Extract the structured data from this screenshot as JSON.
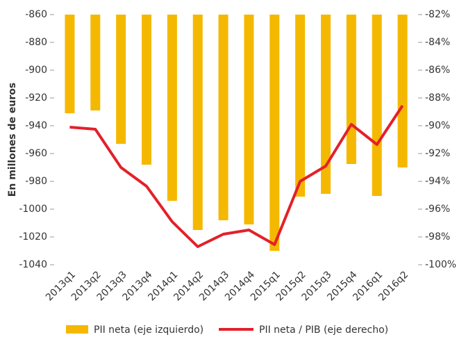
{
  "chart_data": {
    "type": "bar_line",
    "y_label": "En millones de euros",
    "categories": [
      "2013q1",
      "2013q2",
      "2013q3",
      "2013q4",
      "2014q1",
      "2014q2",
      "2014q3",
      "2014q4",
      "2015q1",
      "2015q2",
      "2015q3",
      "2015q4",
      "2016q1",
      "2016q2"
    ],
    "series": [
      {
        "name": "PII neta (eje izquierdo)",
        "type": "bar",
        "color": "#f5b800",
        "axis": "y",
        "values": [
          -931,
          -929,
          -953,
          -968,
          -994,
          -1015,
          -1008,
          -1011,
          -1030,
          -991,
          -989,
          -967.5,
          -990.5,
          -970
        ]
      },
      {
        "name": "PII neta / PIB (eje derecho)",
        "type": "line",
        "color": "#e3202a",
        "axis": "y2",
        "values": [
          -90.1,
          -90.25,
          -93,
          -94.35,
          -96.9,
          -98.7,
          -97.8,
          -97.5,
          -98.55,
          -94,
          -92.9,
          -89.9,
          -91.35,
          -88.55
        ]
      }
    ],
    "ylim": [
      -1040,
      -860
    ],
    "yticks": [
      -860,
      -880,
      -900,
      -920,
      -940,
      -960,
      -980,
      -1000,
      -1020,
      -1040
    ],
    "y2lim": [
      -100,
      -82
    ],
    "y2ticks": [
      {
        "value": -82,
        "label": "-82%"
      },
      {
        "value": -84,
        "label": "-84%"
      },
      {
        "value": -86,
        "label": "-86%"
      },
      {
        "value": -88,
        "label": "-88%"
      },
      {
        "value": -90,
        "label": "-90%"
      },
      {
        "value": -92,
        "label": "-92%"
      },
      {
        "value": -94,
        "label": "-94%"
      },
      {
        "value": -96,
        "label": "-96%"
      },
      {
        "value": -98,
        "label": "-98%"
      },
      {
        "value": -100,
        "label": "-100%"
      }
    ],
    "legend": "bottom",
    "grid": false
  }
}
